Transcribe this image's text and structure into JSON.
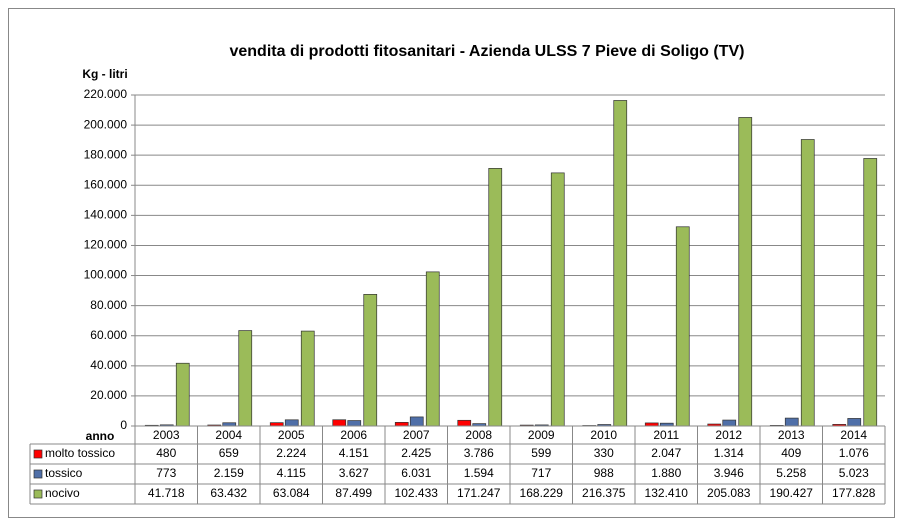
{
  "chart_data": {
    "type": "bar",
    "title": "vendita di prodotti fitosanitari - Azienda ULSS 7 Pieve di Soligo (TV)",
    "y_label": "Kg - litri",
    "x_label": "anno",
    "categories": [
      "2003",
      "2004",
      "2005",
      "2006",
      "2007",
      "2008",
      "2009",
      "2010",
      "2011",
      "2012",
      "2013",
      "2014"
    ],
    "series": [
      {
        "name": "molto tossico",
        "color": "#ff0000",
        "values": [
          480,
          659,
          2224,
          4151,
          2425,
          3786,
          599,
          330,
          2047,
          1314,
          409,
          1076
        ],
        "value_labels": [
          "480",
          "659",
          "2.224",
          "4.151",
          "2.425",
          "3.786",
          "599",
          "330",
          "2.047",
          "1.314",
          "409",
          "1.076"
        ]
      },
      {
        "name": "tossico",
        "color": "#4f6fa8",
        "values": [
          773,
          2159,
          4115,
          3627,
          6031,
          1594,
          717,
          988,
          1880,
          3946,
          5258,
          5023
        ],
        "value_labels": [
          "773",
          "2.159",
          "4.115",
          "3.627",
          "6.031",
          "1.594",
          "717",
          "988",
          "1.880",
          "3.946",
          "5.258",
          "5.023"
        ]
      },
      {
        "name": "nocivo",
        "color": "#9bbb59",
        "values": [
          41718,
          63432,
          63084,
          87499,
          102433,
          171247,
          168229,
          216375,
          132410,
          205083,
          190427,
          177828
        ],
        "value_labels": [
          "41.718",
          "63.432",
          "63.084",
          "87.499",
          "102.433",
          "171.247",
          "168.229",
          "216.375",
          "132.410",
          "205.083",
          "190.427",
          "177.828"
        ]
      }
    ],
    "ylim": [
      0,
      220000
    ],
    "yticks": [
      0,
      {
        "value": 20000,
        "label": "20.000"
      },
      {
        "value": 40000,
        "label": "40.000"
      },
      {
        "value": 60000,
        "label": "60.000"
      },
      {
        "value": 80000,
        "label": "80.000"
      },
      {
        "value": 100000,
        "label": "100.000"
      },
      {
        "value": 120000,
        "label": "120.000"
      },
      {
        "value": 140000,
        "label": "140.000"
      },
      {
        "value": 160000,
        "label": "160.000"
      },
      {
        "value": 180000,
        "label": "180.000"
      },
      {
        "value": 200000,
        "label": "200.000"
      },
      {
        "value": 220000,
        "label": "220.000"
      }
    ],
    "grid": true
  }
}
